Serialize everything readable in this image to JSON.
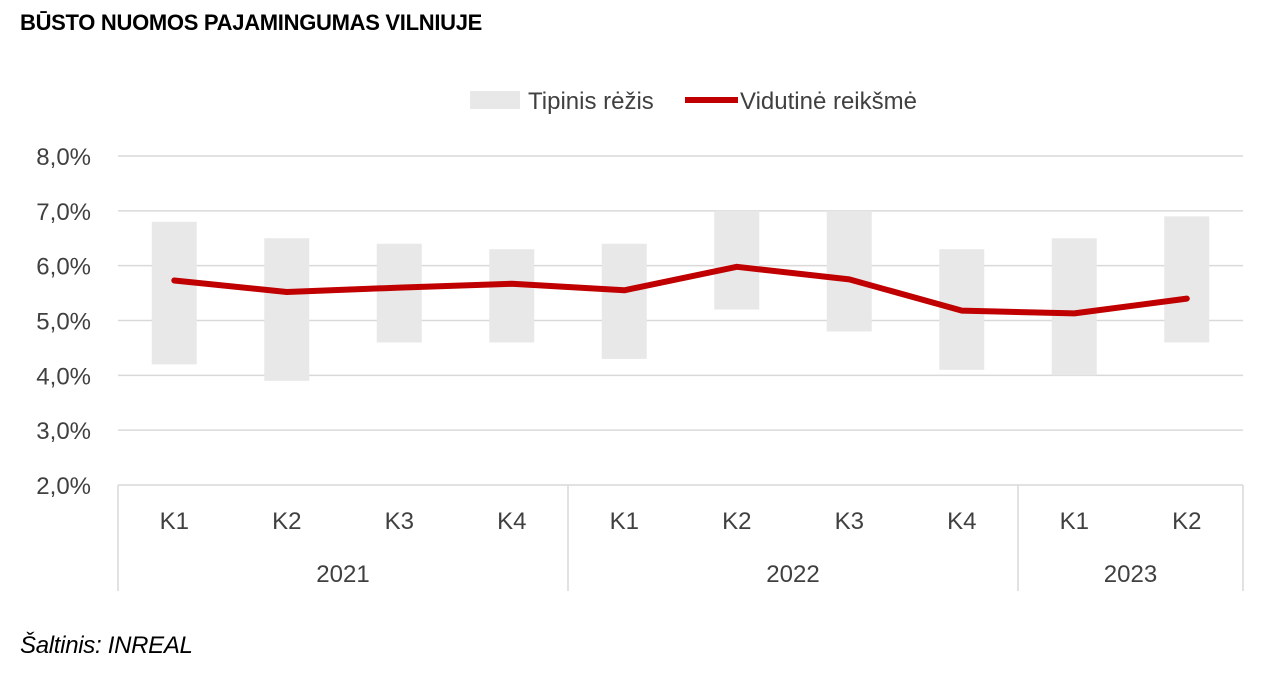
{
  "title": "BŪSTO NUOMOS PAJAMINGUMAS VILNIUJE",
  "source": "Šaltinis: INREAL",
  "chart_data": {
    "type": "line",
    "title": "BŪSTO NUOMOS PAJAMINGUMAS VILNIUJE",
    "ylim": [
      2.0,
      8.0
    ],
    "yticks": [
      "8,0%",
      "7,0%",
      "6,0%",
      "5,0%",
      "4,0%",
      "3,0%",
      "2,0%"
    ],
    "ytick_values": [
      8,
      7,
      6,
      5,
      4,
      3,
      2
    ],
    "grid": true,
    "legend_position": "top",
    "categories": [
      "K1",
      "K2",
      "K3",
      "K4",
      "K1",
      "K2",
      "K3",
      "K4",
      "K1",
      "K2"
    ],
    "year_groups": [
      {
        "label": "2021",
        "count": 4
      },
      {
        "label": "2022",
        "count": 4
      },
      {
        "label": "2023",
        "count": 2
      }
    ],
    "series": [
      {
        "name": "Tipinis rėžis",
        "kind": "range",
        "color": "#e8e8e8",
        "low": [
          4.2,
          3.9,
          4.6,
          4.6,
          4.3,
          5.2,
          4.8,
          4.1,
          4.0,
          4.6
        ],
        "high": [
          6.8,
          6.5,
          6.4,
          6.3,
          6.4,
          7.0,
          7.0,
          6.3,
          6.5,
          6.9
        ]
      },
      {
        "name": "Vidutinė reikšmė",
        "kind": "line",
        "color": "#c00000",
        "values": [
          5.73,
          5.52,
          5.6,
          5.67,
          5.55,
          5.98,
          5.75,
          5.18,
          5.13,
          5.4
        ]
      }
    ]
  }
}
